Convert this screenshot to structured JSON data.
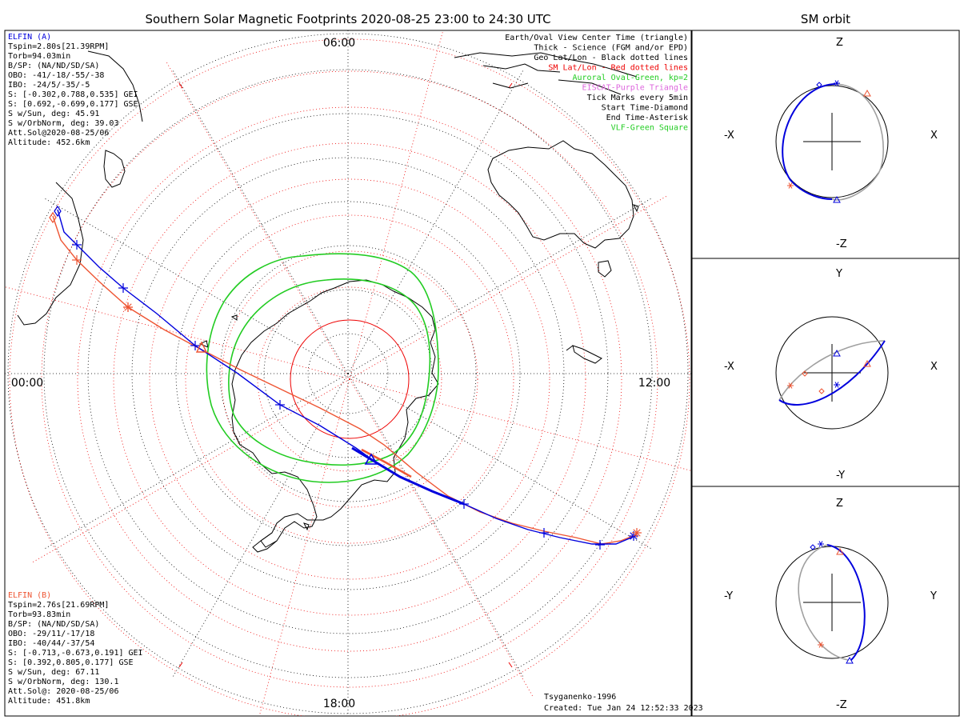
{
  "main": {
    "title": "Southern Solar Magnetic Footprints 2020-08-25 23:00 to 24:30 UTC",
    "time_labels": {
      "top": "06:00",
      "left": "00:00",
      "right": "12:00",
      "bottom": "18:00"
    }
  },
  "elfin_a": {
    "name": "ELFIN (A)",
    "color": "#0000dd",
    "lines": [
      "Tspin=2.80s[21.39RPM]",
      "Torb=94.03min",
      "B/SP: (NA/ND/SD/SA)",
      "OBO: -41/-18/-55/-38",
      "IBO: -24/5/-35/-5",
      "S: [-0.302,0.788,0.535] GEI",
      "S: [0.692,-0.699,0.177] GSE",
      "S w/Sun, deg: 45.91",
      "S w/OrbNorm, deg: 39.03",
      "Att.Sol@2020-08-25/06",
      "Altitude: 452.6km"
    ]
  },
  "elfin_b": {
    "name": "ELFIN (B)",
    "color": "#ee5533",
    "lines": [
      "Tspin=2.76s[21.69RPM]",
      "Torb=93.83min",
      "B/SP: (NA/ND/SD/SA)",
      "OBO: -29/11/-17/18",
      "IBO: -40/44/-37/54",
      "S: [-0.713,-0.673,0.191] GEI",
      "S: [0.392,0.805,0.177] GSE",
      "S w/Sun, deg: 67.11",
      "S w/OrbNorm, deg: 130.1",
      "Att.Sol@: 2020-08-25/06",
      "Altitude: 451.8km"
    ]
  },
  "legend": [
    {
      "text": "Earth/Oval View Center Time (triangle)",
      "color": "#000000"
    },
    {
      "text": "Thick - Science (FGM and/or EPD)",
      "color": "#000000"
    },
    {
      "text": "Geo Lat/Lon - Black dotted lines",
      "color": "#000000"
    },
    {
      "text": "SM Lat/Lon - Red dotted lines",
      "color": "#ee0000"
    },
    {
      "text": "Auroral Oval-Green, kp=2",
      "color": "#22cc22"
    },
    {
      "text": "EISCAT-Purple Triangle",
      "color": "#dd66dd"
    },
    {
      "text": "Tick Marks every 5min",
      "color": "#000000"
    },
    {
      "text": "Start Time-Diamond",
      "color": "#000000"
    },
    {
      "text": "End Time-Asterisk",
      "color": "#000000"
    },
    {
      "text": "VLF-Green Square",
      "color": "#22cc22"
    }
  ],
  "footer": {
    "model": "Tsyganenko-1996",
    "created": "Created: Tue Jan 24 12:52:33 2023"
  },
  "sm_orbit": {
    "title": "SM orbit",
    "panels": [
      {
        "up": "Z",
        "down": "-Z",
        "left": "-X",
        "right": "X"
      },
      {
        "up": "Y",
        "down": "-Y",
        "left": "-X",
        "right": "X"
      },
      {
        "up": "Z",
        "down": "-Z",
        "left": "-Y",
        "right": "Y"
      }
    ]
  },
  "colors": {
    "orbit_a": "#0000dd",
    "orbit_b": "#ee5533",
    "oval": "#22cc22",
    "sm_grid": "#ee0000",
    "geo_grid": "#000000",
    "orbit_gray": "#a0a0a0"
  }
}
